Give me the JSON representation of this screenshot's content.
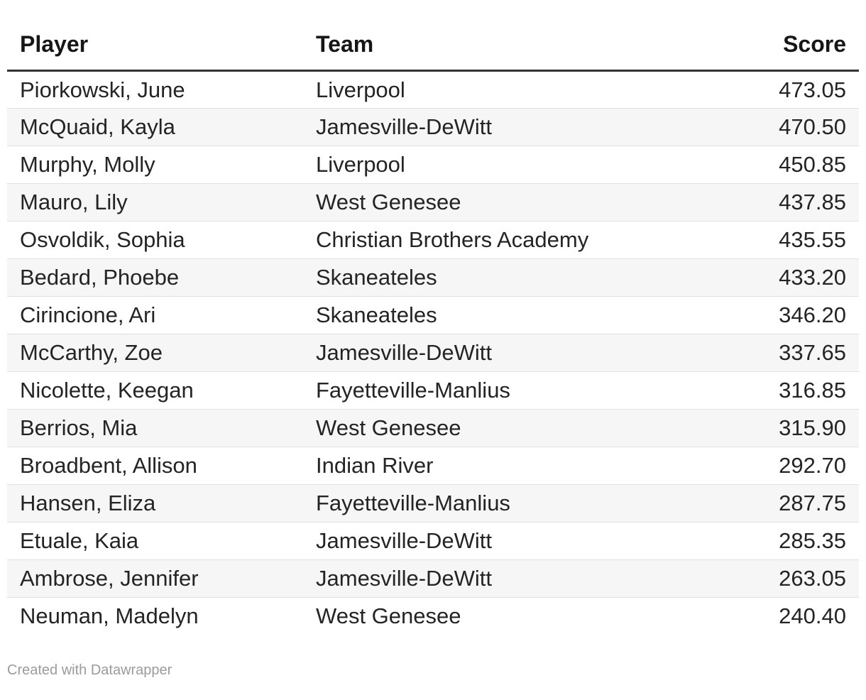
{
  "chart_data": {
    "type": "table",
    "columns": [
      {
        "label": "Player",
        "align": "left"
      },
      {
        "label": "Team",
        "align": "left"
      },
      {
        "label": "Score",
        "align": "right"
      }
    ],
    "rows": [
      [
        "Piorkowski, June",
        "Liverpool",
        "473.05"
      ],
      [
        "McQuaid, Kayla",
        "Jamesville-DeWitt",
        "470.50"
      ],
      [
        "Murphy, Molly",
        "Liverpool",
        "450.85"
      ],
      [
        "Mauro, Lily",
        "West Genesee",
        "437.85"
      ],
      [
        "Osvoldik, Sophia",
        "Christian Brothers Academy",
        "435.55"
      ],
      [
        "Bedard, Phoebe",
        "Skaneateles",
        "433.20"
      ],
      [
        "Cirincione, Ari",
        "Skaneateles",
        "346.20"
      ],
      [
        "McCarthy, Zoe",
        "Jamesville-DeWitt",
        "337.65"
      ],
      [
        "Nicolette, Keegan",
        "Fayetteville-Manlius",
        "316.85"
      ],
      [
        "Berrios, Mia",
        "West Genesee",
        "315.90"
      ],
      [
        "Broadbent, Allison",
        "Indian River",
        "292.70"
      ],
      [
        "Hansen, Eliza",
        "Fayetteville-Manlius",
        "287.75"
      ],
      [
        "Etuale, Kaia",
        "Jamesville-DeWitt",
        "285.35"
      ],
      [
        "Ambrose, Jennifer",
        "Jamesville-DeWitt",
        "263.05"
      ],
      [
        "Neuman, Madelyn",
        "West Genesee",
        "240.40"
      ]
    ],
    "layout": {
      "zebra_striping": true,
      "header_rule": true
    }
  },
  "footer": {
    "credit_text": "Created with Datawrapper"
  },
  "colors": {
    "stripe_background": "#f6f6f6",
    "header_rule": "#333333",
    "row_divider": "#e1e1e1",
    "credit_text": "#9b9b9b"
  }
}
